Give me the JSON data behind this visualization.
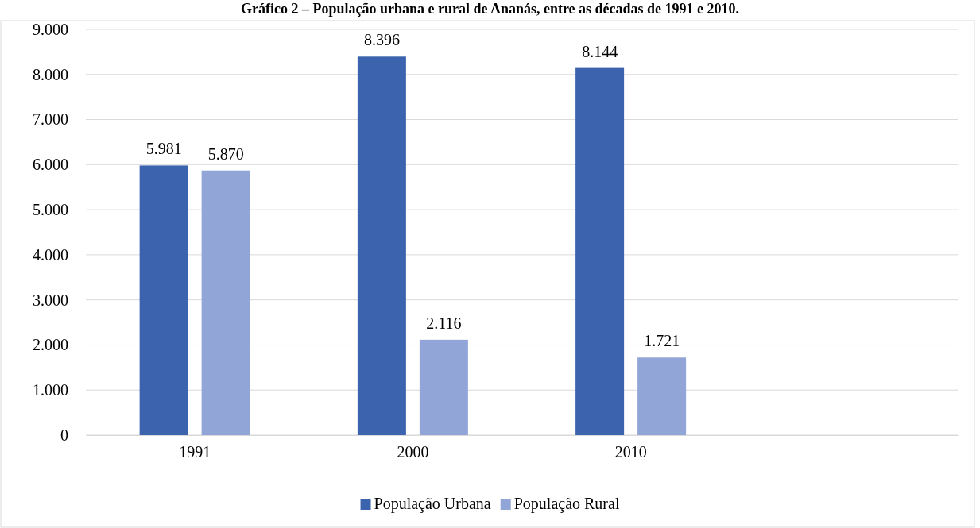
{
  "chart_data": {
    "type": "bar",
    "title": "Gráfico 2 – População urbana e rural de Ananás, entre as décadas de 1991 e 2010.",
    "categories": [
      "1991",
      "2000",
      "2010",
      null
    ],
    "series": [
      {
        "name": "População Urbana",
        "color": "#3c64ae",
        "values": [
          5981,
          8396,
          8144,
          null
        ]
      },
      {
        "name": "População Rural",
        "color": "#91a6d6",
        "values": [
          5870,
          2116,
          1721,
          null
        ]
      }
    ],
    "ylim": [
      0,
      9000
    ],
    "yticks": [
      {
        "value": 0,
        "label": "0"
      },
      {
        "value": 1000,
        "label": "1.000"
      },
      {
        "value": 2000,
        "label": "2.000"
      },
      {
        "value": 3000,
        "label": "3.000"
      },
      {
        "value": 4000,
        "label": "4.000"
      },
      {
        "value": 5000,
        "label": "5.000"
      },
      {
        "value": 6000,
        "label": "6.000"
      },
      {
        "value": 7000,
        "label": "7.000"
      },
      {
        "value": 8000,
        "label": "8.000"
      },
      {
        "value": 9000,
        "label": "9.000"
      }
    ],
    "value_labels": [
      [
        "5.981",
        "8.396",
        "8.144",
        null
      ],
      [
        "5.870",
        "2.116",
        "1.721",
        null
      ]
    ],
    "grid": "y",
    "legend": "bottom"
  }
}
